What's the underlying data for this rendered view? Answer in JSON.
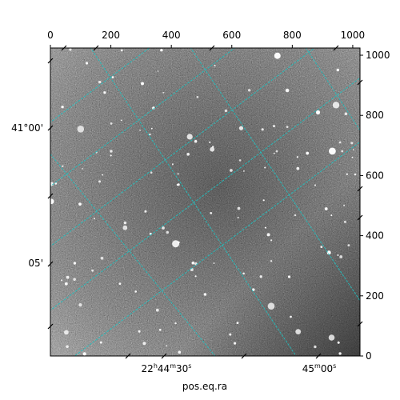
{
  "chart_data": {
    "type": "image",
    "xlabel": "pos.eq.ra",
    "ylabel": "",
    "pixel_axes": {
      "x": {
        "range": [
          0,
          1024
        ],
        "ticks": [
          0,
          200,
          400,
          600,
          800,
          1000
        ],
        "labels": [
          "0",
          "200",
          "400",
          "600",
          "800",
          "1000"
        ]
      },
      "y": {
        "range": [
          0,
          1024
        ],
        "ticks": [
          0,
          200,
          400,
          600,
          800,
          1000
        ],
        "labels": [
          "0",
          "200",
          "400",
          "600",
          "800",
          "1000"
        ]
      }
    },
    "world_axes": {
      "ra": {
        "labels": [
          {
            "h": "22",
            "m": "44",
            "s": "30",
            "value_deg": 341.125
          },
          {
            "h": "",
            "m": "45",
            "s": "00",
            "value_deg": 341.25
          }
        ]
      },
      "dec": {
        "labels": [
          {
            "text": "41°00'",
            "value_deg": 41.0
          },
          {
            "text": "05'",
            "value_deg": 41.0833
          }
        ]
      }
    },
    "grid": true,
    "grid_color": "#20c0c0",
    "image_colormap": "gray"
  },
  "colors": {
    "grid": "#20c0c0",
    "axis": "#000000"
  }
}
